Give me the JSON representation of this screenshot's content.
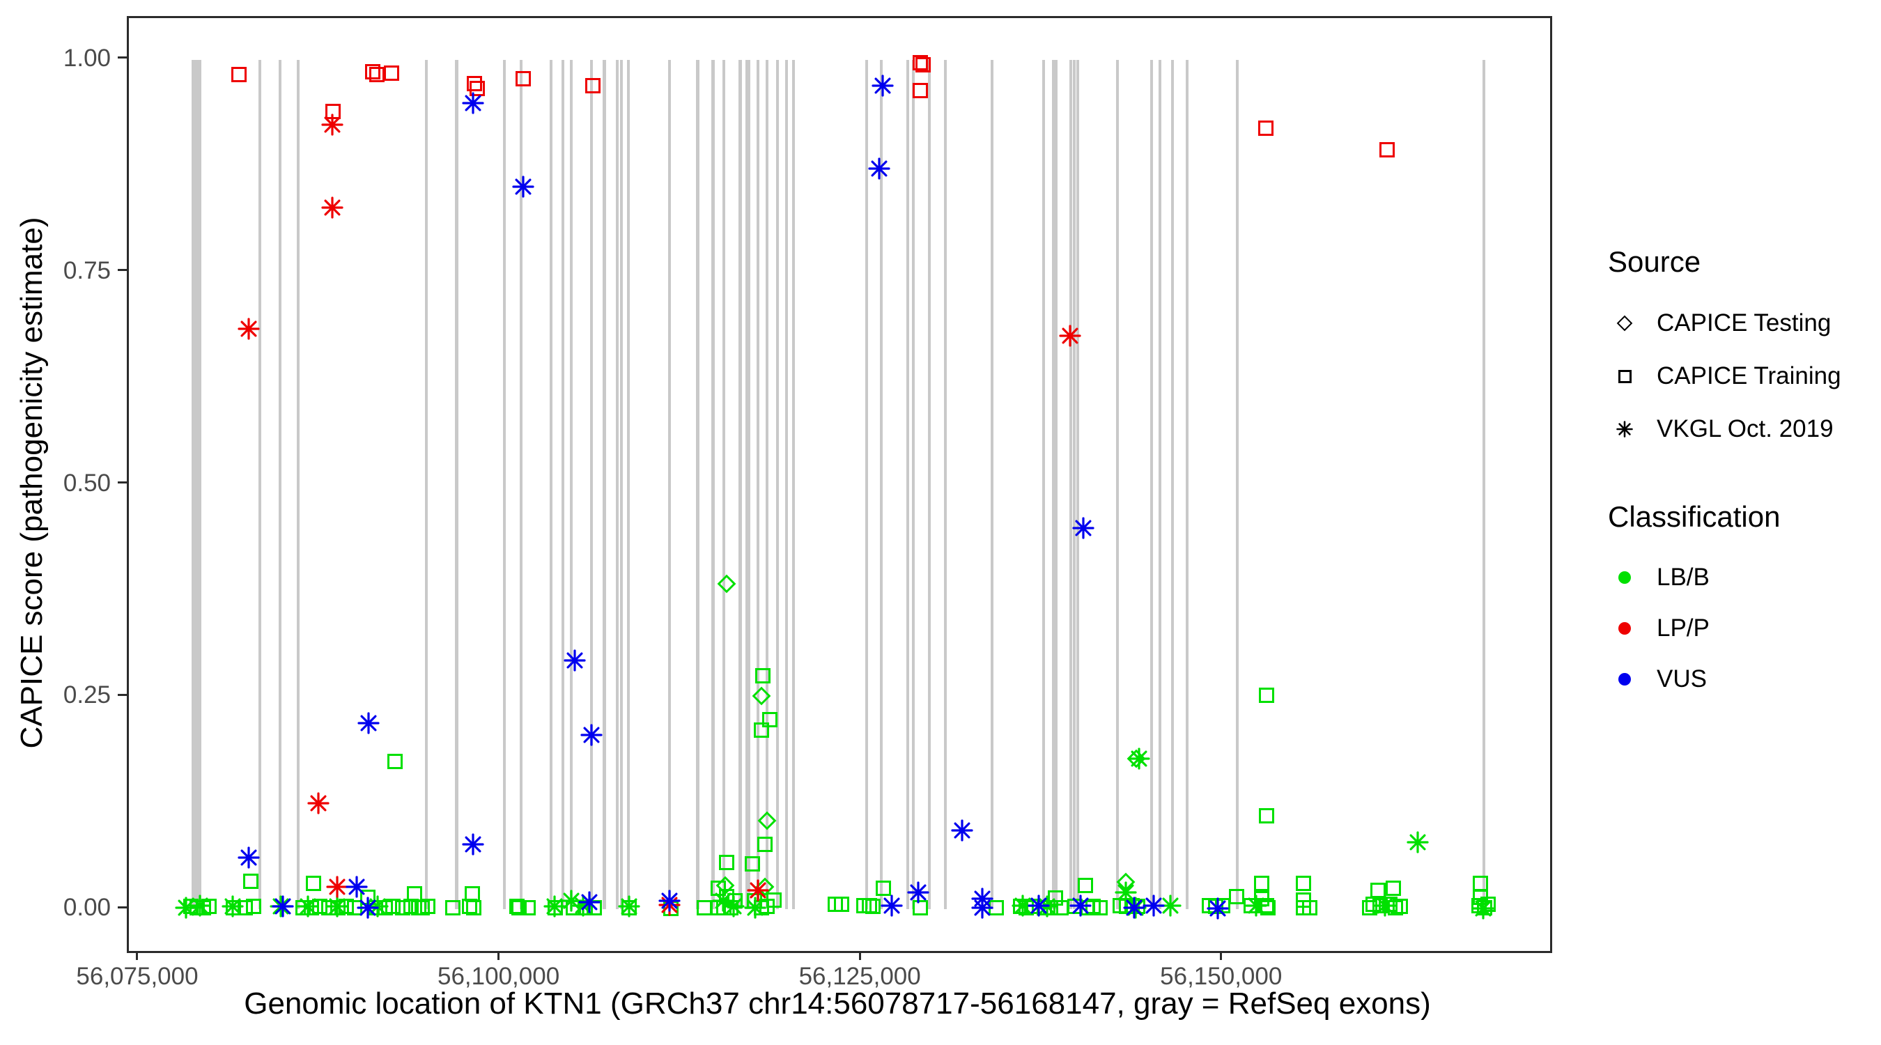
{
  "figure": {
    "x_axis": {
      "title": "Genomic location of KTN1 (GRCh37 chr14:56078717-56168147, gray = RefSeq exons)",
      "tick_labels": [
        "56,075,000",
        "56,100,000",
        "56,125,000",
        "56,150,000"
      ],
      "tick_values": [
        56075000,
        56100000,
        56125000,
        56150000
      ]
    },
    "y_axis": {
      "title": "CAPICE score (pathogenicity estimate)",
      "tick_labels": [
        "1.00",
        "0.75",
        "0.50",
        "0.25",
        "0.00"
      ],
      "tick_values": [
        1.0,
        0.75,
        0.5,
        0.25,
        0.0
      ]
    },
    "legend_source": {
      "title": "Source",
      "entries": [
        {
          "shape": "di",
          "label": "CAPICE Testing"
        },
        {
          "shape": "sq",
          "label": "CAPICE Training"
        },
        {
          "shape": "as",
          "label": "VKGL Oct. 2019"
        }
      ]
    },
    "legend_classification": {
      "title": "Classification",
      "entries": [
        {
          "color": "#00e000",
          "label": "LB/B"
        },
        {
          "color": "#ee0000",
          "label": "LP/P"
        },
        {
          "color": "#0000ee",
          "label": "VUS"
        }
      ]
    }
  },
  "chart_data": {
    "type": "scatter",
    "xlabel": "Genomic location of KTN1 (GRCh37 chr14:56078717-56168147, gray = RefSeq exons)",
    "ylabel": "CAPICE score (pathogenicity estimate)",
    "x_domain": [
      56074277,
      56172622
    ],
    "y_domain": [
      -0.0492,
      1.0492
    ],
    "grid": "off",
    "legend_position": "right",
    "palette": {
      "LB/B": "#00e000",
      "LP/P": "#ee0000",
      "VUS": "#0000ee",
      "exon_gray": "#c9c9c9"
    },
    "shape_meaning": {
      "sq": "CAPICE Training",
      "di": "CAPICE Testing",
      "as": "VKGL Oct. 2019"
    },
    "class_meaning": {
      "g": "LB/B",
      "r": "LP/P",
      "b": "VUS"
    },
    "exons_note": "gray vertical bands = RefSeq exons, drawn from score 0.0 to 1.0",
    "exons": [
      [
        56078971,
        675
      ],
      [
        56083360,
        195
      ],
      [
        56084760,
        195
      ],
      [
        56086010,
        195
      ],
      [
        56094880,
        195
      ],
      [
        56096960,
        195
      ],
      [
        56100240,
        195
      ],
      [
        56101440,
        195
      ],
      [
        56103470,
        195
      ],
      [
        56104290,
        195
      ],
      [
        56104870,
        195
      ],
      [
        56106310,
        195
      ],
      [
        56107180,
        195
      ],
      [
        56108050,
        195
      ],
      [
        56108340,
        195
      ],
      [
        56108820,
        195
      ],
      [
        56111670,
        195
      ],
      [
        56113640,
        195
      ],
      [
        56114700,
        195
      ],
      [
        56115470,
        195
      ],
      [
        56116580,
        195
      ],
      [
        56117110,
        385
      ],
      [
        56117790,
        195
      ],
      [
        56118420,
        195
      ],
      [
        56119140,
        195
      ],
      [
        56119770,
        195
      ],
      [
        56120250,
        195
      ],
      [
        56125310,
        195
      ],
      [
        56126320,
        195
      ],
      [
        56128160,
        195
      ],
      [
        56128540,
        195
      ],
      [
        56129650,
        195
      ],
      [
        56130760,
        195
      ],
      [
        56133990,
        195
      ],
      [
        56137560,
        195
      ],
      [
        56138330,
        385
      ],
      [
        56139440,
        195
      ],
      [
        56139680,
        195
      ],
      [
        56139920,
        195
      ],
      [
        56142670,
        195
      ],
      [
        56145030,
        195
      ],
      [
        56145610,
        195
      ],
      [
        56146480,
        195
      ],
      [
        56147490,
        195
      ],
      [
        56150960,
        195
      ],
      [
        56168030,
        195
      ]
    ],
    "points_format": [
      "genomic_position",
      "capice_score",
      "shape: sq|di|as",
      "class: g|r|b"
    ],
    "points": [
      [
        56081910,
        0.983,
        "sq",
        "r"
      ],
      [
        56091170,
        0.986,
        "sq",
        "r"
      ],
      [
        56091460,
        0.983,
        "sq",
        "r"
      ],
      [
        56092430,
        0.984,
        "sq",
        "r"
      ],
      [
        56088420,
        0.939,
        "sq",
        "r"
      ],
      [
        56088330,
        0.924,
        "as",
        "r"
      ],
      [
        56088330,
        0.826,
        "as",
        "r"
      ],
      [
        56098210,
        0.972,
        "sq",
        "r"
      ],
      [
        56098360,
        0.966,
        "sq",
        "r"
      ],
      [
        56098070,
        0.949,
        "as",
        "b"
      ],
      [
        56101540,
        0.978,
        "sq",
        "r"
      ],
      [
        56101540,
        0.851,
        "as",
        "b"
      ],
      [
        56106360,
        0.97,
        "sq",
        "r"
      ],
      [
        56126420,
        0.97,
        "as",
        "b"
      ],
      [
        56129020,
        0.997,
        "sq",
        "r"
      ],
      [
        56129220,
        0.994,
        "sq",
        "r"
      ],
      [
        56129020,
        0.964,
        "sq",
        "r"
      ],
      [
        56126180,
        0.872,
        "as",
        "b"
      ],
      [
        56152940,
        0.92,
        "sq",
        "r"
      ],
      [
        56161330,
        0.894,
        "sq",
        "r"
      ],
      [
        56082590,
        0.683,
        "as",
        "r"
      ],
      [
        56139390,
        0.675,
        "as",
        "r"
      ],
      [
        56140310,
        0.449,
        "as",
        "b"
      ],
      [
        56115620,
        0.383,
        "di",
        "g"
      ],
      [
        56105150,
        0.293,
        "as",
        "b"
      ],
      [
        56118170,
        0.275,
        "sq",
        "g"
      ],
      [
        56118030,
        0.251,
        "di",
        "g"
      ],
      [
        56118610,
        0.223,
        "sq",
        "g"
      ],
      [
        56118030,
        0.211,
        "sq",
        "g"
      ],
      [
        56090880,
        0.219,
        "as",
        "b"
      ],
      [
        56106310,
        0.205,
        "as",
        "b"
      ],
      [
        56092710,
        0.174,
        "sq",
        "g"
      ],
      [
        56143970,
        0.177,
        "di",
        "g"
      ],
      [
        56144170,
        0.177,
        "as",
        "g"
      ],
      [
        56152990,
        0.252,
        "sq",
        "g"
      ],
      [
        56087410,
        0.125,
        "as",
        "r"
      ],
      [
        56118420,
        0.104,
        "di",
        "g"
      ],
      [
        56152990,
        0.11,
        "sq",
        "g"
      ],
      [
        56131920,
        0.093,
        "as",
        "b"
      ],
      [
        56098110,
        0.076,
        "as",
        "b"
      ],
      [
        56163450,
        0.079,
        "as",
        "g"
      ],
      [
        56082590,
        0.061,
        "as",
        "b"
      ],
      [
        56082730,
        0.033,
        "sq",
        "g"
      ],
      [
        56118270,
        0.076,
        "sq",
        "g"
      ],
      [
        56078250,
        0.002,
        "as",
        "g"
      ],
      [
        56078590,
        0.003,
        "sq",
        "g"
      ],
      [
        56079020,
        0.002,
        "sq",
        "g"
      ],
      [
        56079210,
        0.004,
        "as",
        "g"
      ],
      [
        56079450,
        0.002,
        "sq",
        "g"
      ],
      [
        56079840,
        0.003,
        "sq",
        "g"
      ],
      [
        56081480,
        0.003,
        "as",
        "g"
      ],
      [
        56081530,
        0.002,
        "sq",
        "g"
      ],
      [
        56082350,
        0.002,
        "sq",
        "g"
      ],
      [
        56082930,
        0.003,
        "sq",
        "g"
      ],
      [
        56084810,
        0.003,
        "as",
        "g"
      ],
      [
        56084950,
        0.003,
        "as",
        "b"
      ],
      [
        56086350,
        0.002,
        "sq",
        "g"
      ],
      [
        56086690,
        0.003,
        "as",
        "g"
      ],
      [
        56086930,
        0.002,
        "sq",
        "g"
      ],
      [
        56087030,
        0.03,
        "sq",
        "g"
      ],
      [
        56087510,
        0.003,
        "sq",
        "g"
      ],
      [
        56088130,
        0.002,
        "sq",
        "g"
      ],
      [
        56088710,
        0.026,
        "as",
        "r"
      ],
      [
        56088710,
        0.003,
        "as",
        "g"
      ],
      [
        56088760,
        0.002,
        "sq",
        "g"
      ],
      [
        56089340,
        0.003,
        "sq",
        "g"
      ],
      [
        56089920,
        0.002,
        "sq",
        "g"
      ],
      [
        56090060,
        0.026,
        "as",
        "b"
      ],
      [
        56090790,
        0.014,
        "sq",
        "g"
      ],
      [
        56090790,
        0.002,
        "as",
        "b"
      ],
      [
        56091360,
        0.002,
        "sq",
        "g"
      ],
      [
        56091510,
        0.003,
        "as",
        "g"
      ],
      [
        56092000,
        0.002,
        "sq",
        "g"
      ],
      [
        56092570,
        0.003,
        "sq",
        "g"
      ],
      [
        56093200,
        0.002,
        "sq",
        "g"
      ],
      [
        56093820,
        0.003,
        "sq",
        "g"
      ],
      [
        56094020,
        0.018,
        "sq",
        "g"
      ],
      [
        56094310,
        0.002,
        "sq",
        "g"
      ],
      [
        56094550,
        0.002,
        "sq",
        "g"
      ],
      [
        56094980,
        0.003,
        "sq",
        "g"
      ],
      [
        56096670,
        0.002,
        "sq",
        "g"
      ],
      [
        56097870,
        0.003,
        "sq",
        "g"
      ],
      [
        56098020,
        0.018,
        "sq",
        "g"
      ],
      [
        56098160,
        0.002,
        "sq",
        "g"
      ],
      [
        56101150,
        0.003,
        "sq",
        "g"
      ],
      [
        56101250,
        0.002,
        "sq",
        "g"
      ],
      [
        56101880,
        0.002,
        "sq",
        "g"
      ],
      [
        56103710,
        0.003,
        "as",
        "g"
      ],
      [
        56103800,
        0.002,
        "sq",
        "g"
      ],
      [
        56104870,
        0.01,
        "as",
        "g"
      ],
      [
        56105010,
        0.002,
        "sq",
        "g"
      ],
      [
        56105730,
        0.004,
        "as",
        "g"
      ],
      [
        56105830,
        0.002,
        "sq",
        "g"
      ],
      [
        56106120,
        0.008,
        "as",
        "b"
      ],
      [
        56106460,
        0.002,
        "sq",
        "g"
      ],
      [
        56108870,
        0.002,
        "sq",
        "g"
      ],
      [
        56108870,
        0.003,
        "as",
        "g"
      ],
      [
        56111670,
        0.01,
        "as",
        "b"
      ],
      [
        56111670,
        0.005,
        "as",
        "r"
      ],
      [
        56111760,
        0.001,
        "sq",
        "g"
      ],
      [
        56114080,
        0.002,
        "sq",
        "g"
      ],
      [
        56115040,
        0.025,
        "sq",
        "g"
      ],
      [
        56115040,
        0.002,
        "sq",
        "g"
      ],
      [
        56115620,
        0.055,
        "sq",
        "g"
      ],
      [
        56115520,
        0.028,
        "di",
        "g"
      ],
      [
        56115380,
        0.01,
        "as",
        "g"
      ],
      [
        56115620,
        0.015,
        "sq",
        "g"
      ],
      [
        56115430,
        0.002,
        "sq",
        "g"
      ],
      [
        56115910,
        0.002,
        "sq",
        "g"
      ],
      [
        56116100,
        0.003,
        "as",
        "g"
      ],
      [
        56116200,
        0.01,
        "sq",
        "g"
      ],
      [
        56117400,
        0.053,
        "sq",
        "g"
      ],
      [
        56117790,
        0.022,
        "as",
        "r"
      ],
      [
        56118270,
        0.026,
        "di",
        "g"
      ],
      [
        56117550,
        0.01,
        "sq",
        "g"
      ],
      [
        56117640,
        0.002,
        "as",
        "g"
      ],
      [
        56118030,
        0.002,
        "sq",
        "g"
      ],
      [
        56118420,
        0.003,
        "sq",
        "g"
      ],
      [
        56118900,
        0.011,
        "sq",
        "g"
      ],
      [
        56123140,
        0.006,
        "sq",
        "g"
      ],
      [
        56123580,
        0.006,
        "sq",
        "g"
      ],
      [
        56125120,
        0.004,
        "sq",
        "g"
      ],
      [
        56125500,
        0.004,
        "sq",
        "g"
      ],
      [
        56125750,
        0.003,
        "sq",
        "g"
      ],
      [
        56126470,
        0.025,
        "sq",
        "g"
      ],
      [
        56127050,
        0.004,
        "as",
        "b"
      ],
      [
        56128880,
        0.02,
        "as",
        "b"
      ],
      [
        56129020,
        0.002,
        "sq",
        "g"
      ],
      [
        56133320,
        0.012,
        "as",
        "b"
      ],
      [
        56133320,
        0.002,
        "as",
        "b"
      ],
      [
        56134280,
        0.002,
        "sq",
        "g"
      ],
      [
        56135970,
        0.003,
        "sq",
        "g"
      ],
      [
        56136110,
        0.004,
        "as",
        "g"
      ],
      [
        56136350,
        0.002,
        "sq",
        "g"
      ],
      [
        56136740,
        0.003,
        "sq",
        "g"
      ],
      [
        56137220,
        0.004,
        "as",
        "b"
      ],
      [
        56137610,
        0.002,
        "sq",
        "g"
      ],
      [
        56137800,
        0.003,
        "as",
        "g"
      ],
      [
        56138040,
        0.002,
        "sq",
        "g"
      ],
      [
        56138380,
        0.013,
        "sq",
        "g"
      ],
      [
        56138760,
        0.002,
        "sq",
        "g"
      ],
      [
        56139730,
        0.003,
        "sq",
        "g"
      ],
      [
        56140110,
        0.004,
        "as",
        "b"
      ],
      [
        56140450,
        0.028,
        "sq",
        "g"
      ],
      [
        56140600,
        0.002,
        "sq",
        "g"
      ],
      [
        56140980,
        0.003,
        "sq",
        "g"
      ],
      [
        56141470,
        0.002,
        "sq",
        "g"
      ],
      [
        56143250,
        0.032,
        "di",
        "g"
      ],
      [
        56143250,
        0.02,
        "as",
        "g"
      ],
      [
        56142860,
        0.004,
        "sq",
        "g"
      ],
      [
        56143300,
        0.003,
        "sq",
        "g"
      ],
      [
        56143680,
        0.004,
        "sq",
        "g"
      ],
      [
        56144070,
        0.003,
        "sq",
        "g"
      ],
      [
        56143830,
        0.002,
        "as",
        "b"
      ],
      [
        56143920,
        0.002,
        "as",
        "g"
      ],
      [
        56145180,
        0.004,
        "as",
        "b"
      ],
      [
        56146340,
        0.004,
        "as",
        "g"
      ],
      [
        56149610,
        0.001,
        "as",
        "b"
      ],
      [
        56149040,
        0.004,
        "sq",
        "g"
      ],
      [
        56149470,
        0.003,
        "sq",
        "g"
      ],
      [
        56149950,
        0.004,
        "sq",
        "g"
      ],
      [
        56150920,
        0.015,
        "sq",
        "g"
      ],
      [
        56151930,
        0.004,
        "sq",
        "g"
      ],
      [
        56152270,
        0.004,
        "as",
        "g"
      ],
      [
        56152650,
        0.03,
        "sq",
        "g"
      ],
      [
        56152650,
        0.012,
        "sq",
        "g"
      ],
      [
        56152990,
        0.004,
        "sq",
        "g"
      ],
      [
        56153090,
        0.002,
        "sq",
        "g"
      ],
      [
        56155550,
        0.03,
        "sq",
        "g"
      ],
      [
        56155550,
        0.011,
        "sq",
        "g"
      ],
      [
        56155550,
        0.002,
        "sq",
        "g"
      ],
      [
        56155980,
        0.002,
        "sq",
        "g"
      ],
      [
        56160130,
        0.002,
        "sq",
        "g"
      ],
      [
        56160370,
        0.006,
        "sq",
        "g"
      ],
      [
        56160700,
        0.022,
        "sq",
        "g"
      ],
      [
        56160850,
        0.004,
        "sq",
        "g"
      ],
      [
        56161190,
        0.004,
        "as",
        "g"
      ],
      [
        56161520,
        0.006,
        "sq",
        "g"
      ],
      [
        56161760,
        0.025,
        "sq",
        "g"
      ],
      [
        56161910,
        0.002,
        "sq",
        "g"
      ],
      [
        56162250,
        0.003,
        "sq",
        "g"
      ],
      [
        56167700,
        0.004,
        "sq",
        "g"
      ],
      [
        56167790,
        0.03,
        "sq",
        "g"
      ],
      [
        56167790,
        0.014,
        "sq",
        "g"
      ],
      [
        56167990,
        0.001,
        "as",
        "g"
      ],
      [
        56168080,
        0.002,
        "sq",
        "g"
      ],
      [
        56168320,
        0.006,
        "sq",
        "g"
      ]
    ]
  }
}
